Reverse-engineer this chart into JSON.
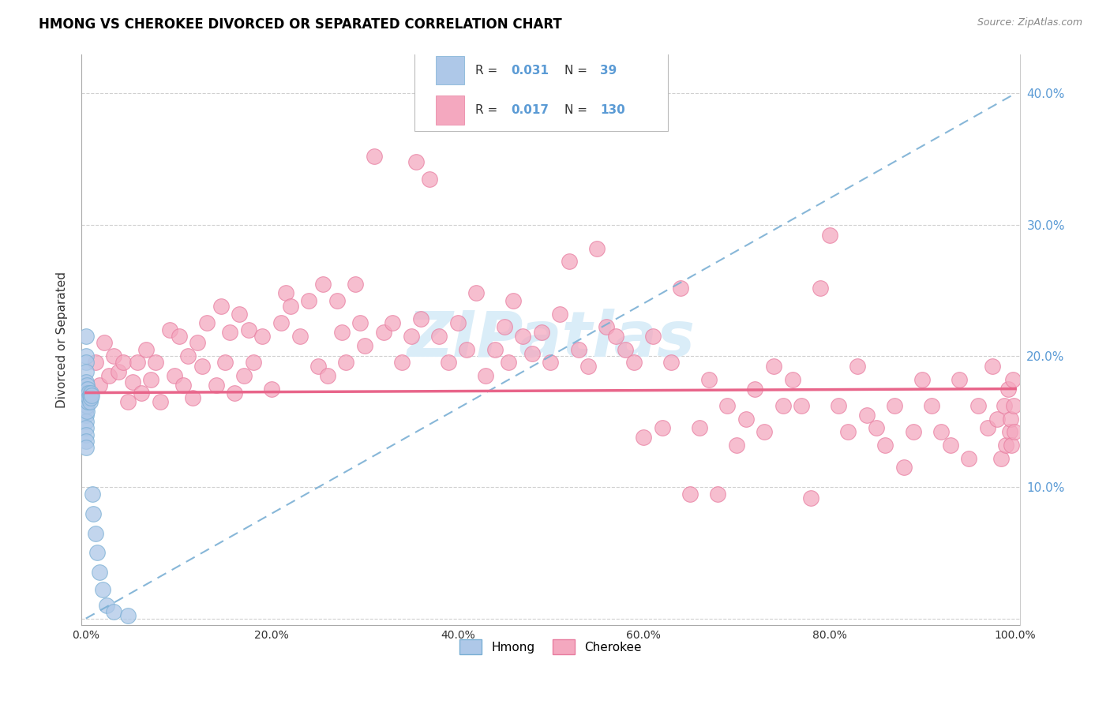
{
  "title": "HMONG VS CHEROKEE DIVORCED OR SEPARATED CORRELATION CHART",
  "source": "Source: ZipAtlas.com",
  "ylabel": "Divorced or Separated",
  "hmong_color": "#aec8e8",
  "hmong_edge": "#7aafd4",
  "cherokee_color": "#f4a8bf",
  "cherokee_edge": "#e87da0",
  "hmong_R": 0.031,
  "hmong_N": 39,
  "cherokee_R": 0.017,
  "cherokee_N": 130,
  "trend_hmong_color": "#7aafd4",
  "trend_cherokee_color": "#e8658a",
  "watermark": "ZIPatlas",
  "watermark_color": "#daedf8",
  "right_axis_color": "#5b9bd5",
  "legend_value_color": "#5b9bd5",
  "grid_color": "#d0d0d0",
  "hmong_trend_x0": 0.0,
  "hmong_trend_y0": 0.0,
  "hmong_trend_x1": 1.0,
  "hmong_trend_y1": 0.4,
  "cherokee_trend_x0": 0.0,
  "cherokee_trend_y0": 0.172,
  "cherokee_trend_x1": 1.0,
  "cherokee_trend_y1": 0.175,
  "ylim_min": -0.005,
  "ylim_max": 0.43,
  "xlim_min": -0.005,
  "xlim_max": 1.005
}
